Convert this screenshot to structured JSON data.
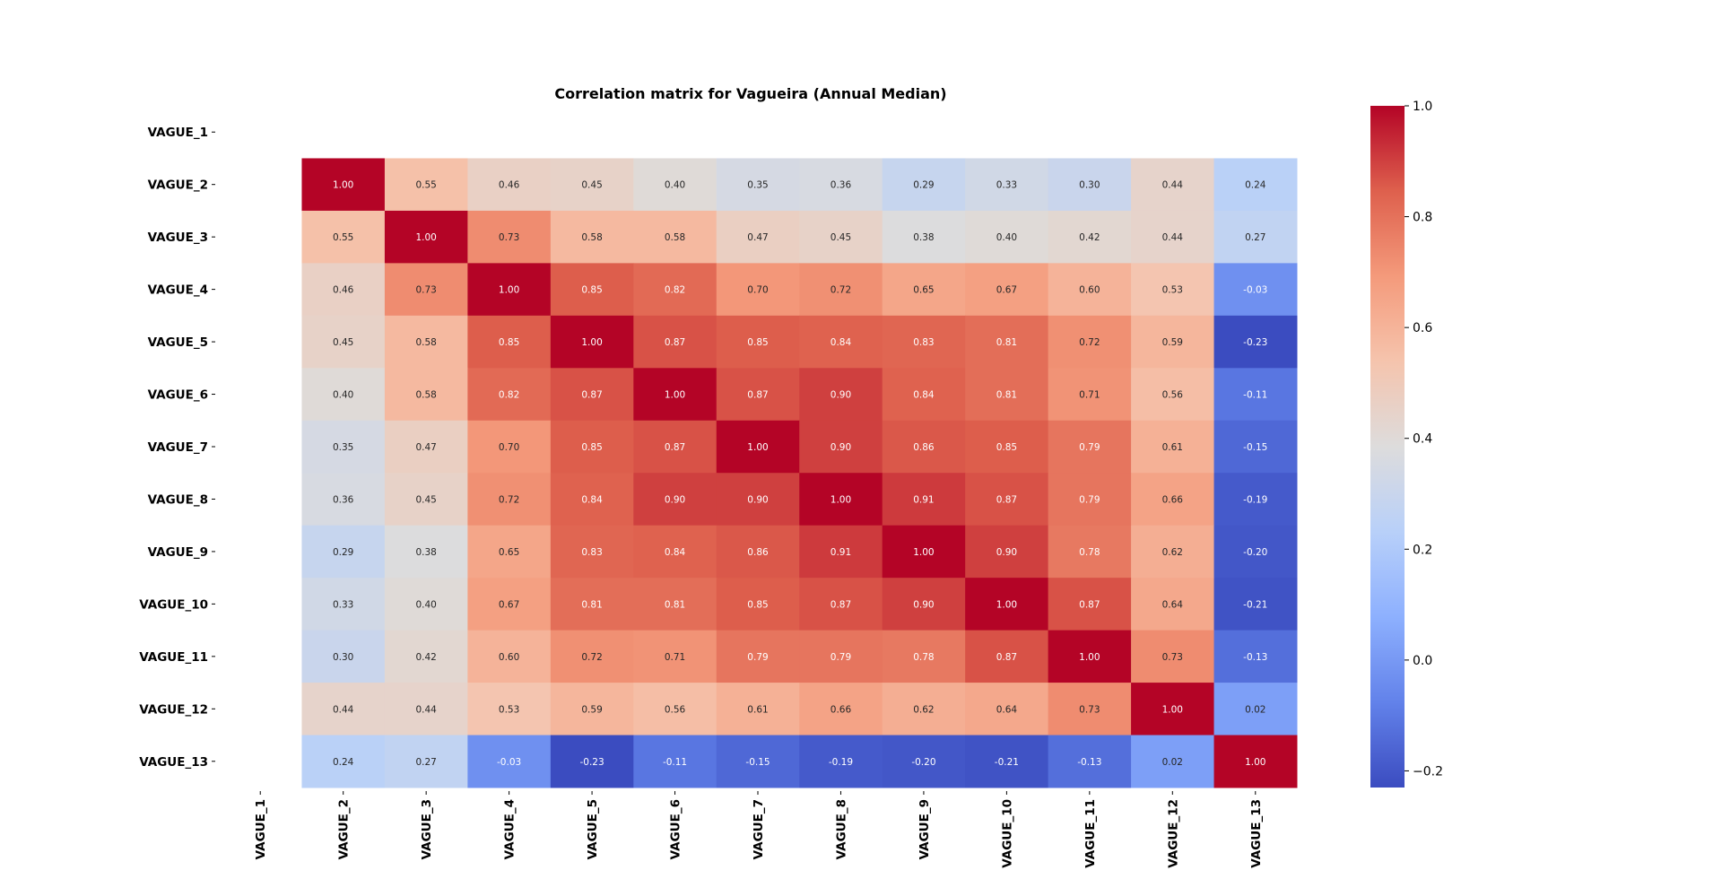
{
  "chart_data": {
    "type": "heatmap",
    "title": "Correlation matrix for Vagueira (Annual Median)",
    "row_labels": [
      "VAGUE_1",
      "VAGUE_2",
      "VAGUE_3",
      "VAGUE_4",
      "VAGUE_5",
      "VAGUE_6",
      "VAGUE_7",
      "VAGUE_8",
      "VAGUE_9",
      "VAGUE_10",
      "VAGUE_11",
      "VAGUE_12",
      "VAGUE_13"
    ],
    "col_labels": [
      "VAGUE_1",
      "VAGUE_2",
      "VAGUE_3",
      "VAGUE_4",
      "VAGUE_5",
      "VAGUE_6",
      "VAGUE_7",
      "VAGUE_8",
      "VAGUE_9",
      "VAGUE_10",
      "VAGUE_11",
      "VAGUE_12",
      "VAGUE_13"
    ],
    "values": [
      [
        null,
        null,
        null,
        null,
        null,
        null,
        null,
        null,
        null,
        null,
        null,
        null,
        null
      ],
      [
        null,
        1.0,
        0.55,
        0.46,
        0.45,
        0.4,
        0.35,
        0.36,
        0.29,
        0.33,
        0.3,
        0.44,
        0.24
      ],
      [
        null,
        0.55,
        1.0,
        0.73,
        0.58,
        0.58,
        0.47,
        0.45,
        0.38,
        0.4,
        0.42,
        0.44,
        0.27
      ],
      [
        null,
        0.46,
        0.73,
        1.0,
        0.85,
        0.82,
        0.7,
        0.72,
        0.65,
        0.67,
        0.6,
        0.53,
        -0.03
      ],
      [
        null,
        0.45,
        0.58,
        0.85,
        1.0,
        0.87,
        0.85,
        0.84,
        0.83,
        0.81,
        0.72,
        0.59,
        -0.23
      ],
      [
        null,
        0.4,
        0.58,
        0.82,
        0.87,
        1.0,
        0.87,
        0.9,
        0.84,
        0.81,
        0.71,
        0.56,
        -0.11
      ],
      [
        null,
        0.35,
        0.47,
        0.7,
        0.85,
        0.87,
        1.0,
        0.9,
        0.86,
        0.85,
        0.79,
        0.61,
        -0.15
      ],
      [
        null,
        0.36,
        0.45,
        0.72,
        0.84,
        0.9,
        0.9,
        1.0,
        0.91,
        0.87,
        0.79,
        0.66,
        -0.19
      ],
      [
        null,
        0.29,
        0.38,
        0.65,
        0.83,
        0.84,
        0.86,
        0.91,
        1.0,
        0.9,
        0.78,
        0.62,
        -0.2
      ],
      [
        null,
        0.33,
        0.4,
        0.67,
        0.81,
        0.81,
        0.85,
        0.87,
        0.9,
        1.0,
        0.87,
        0.64,
        -0.21
      ],
      [
        null,
        0.3,
        0.42,
        0.6,
        0.72,
        0.71,
        0.79,
        0.79,
        0.78,
        0.87,
        1.0,
        0.73,
        -0.13
      ],
      [
        null,
        0.44,
        0.44,
        0.53,
        0.59,
        0.56,
        0.61,
        0.66,
        0.62,
        0.64,
        0.73,
        1.0,
        0.02
      ],
      [
        null,
        0.24,
        0.27,
        -0.03,
        -0.23,
        -0.11,
        -0.15,
        -0.19,
        -0.2,
        -0.21,
        -0.13,
        0.02,
        1.0
      ]
    ],
    "colormap": "coolwarm",
    "vmin": -0.23,
    "vmax": 1.0,
    "colorbar_ticks": [
      1.0,
      0.8,
      0.6,
      0.4,
      0.2,
      0.0,
      -0.2
    ],
    "colorbar_tick_labels": [
      "1.0",
      "0.8",
      "0.6",
      "0.4",
      "0.2",
      "0.0",
      "−0.2"
    ],
    "annotation_format": "0.00",
    "grid": false
  }
}
